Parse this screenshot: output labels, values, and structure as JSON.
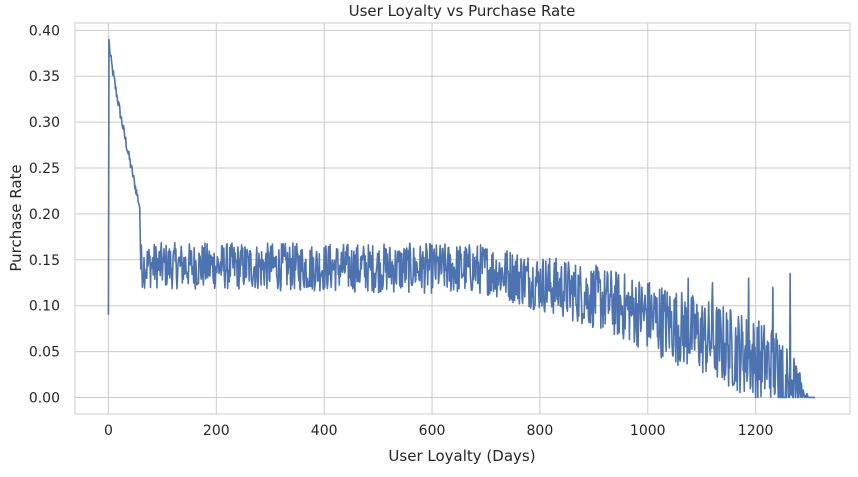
{
  "chart_data": {
    "type": "line",
    "title": "User Loyalty vs Purchase Rate",
    "xlabel": "User Loyalty (Days)",
    "ylabel": "Purchase Rate",
    "xlim": [
      -62,
      1375
    ],
    "ylim": [
      -0.018,
      0.408
    ],
    "xticks": [
      0,
      200,
      400,
      600,
      800,
      1000,
      1200
    ],
    "yticks": [
      0.0,
      0.05,
      0.1,
      0.15,
      0.2,
      0.25,
      0.3,
      0.35,
      0.4
    ],
    "ytick_labels": [
      "0.00",
      "0.05",
      "0.10",
      "0.15",
      "0.20",
      "0.25",
      "0.30",
      "0.35",
      "0.40"
    ],
    "grid": true,
    "colors": {
      "line": "#4c72b0",
      "grid": "#cccccc",
      "text": "#262626"
    },
    "series": [
      {
        "color": "#4c72b0",
        "generator": {
          "start_point": [
            0,
            0.09
          ],
          "peak": [
            1,
            0.39
          ],
          "decay": {
            "from": 1,
            "to": 58,
            "start": 0.385,
            "end": 0.208,
            "noise": 0.006
          },
          "drop_to": [
            60,
            0.14
          ],
          "noisy_trend": [
            {
              "x": 60,
              "mean": 0.144,
              "amp": 0.025
            },
            {
              "x": 700,
              "mean": 0.14,
              "amp": 0.028
            },
            {
              "x": 900,
              "mean": 0.11,
              "amp": 0.035
            },
            {
              "x": 1000,
              "mean": 0.09,
              "amp": 0.04
            },
            {
              "x": 1150,
              "mean": 0.055,
              "amp": 0.045
            },
            {
              "x": 1250,
              "mean": 0.03,
              "amp": 0.045
            },
            {
              "x": 1300,
              "mean": 0.0,
              "amp": 0.0
            }
          ],
          "end_x": 1310,
          "spikes": [
            [
              1264,
              0.135
            ],
            [
              1306,
              0.143
            ],
            [
              1232,
              0.12
            ],
            [
              1187,
              0.13
            ],
            [
              1120,
              0.125
            ],
            [
              1075,
              0.13
            ],
            [
              800,
              0.13
            ],
            [
              770,
              0.145
            ]
          ],
          "zero_tail": [
            [
              1255,
              0.0
            ],
            [
              1262,
              0.0
            ],
            [
              1284,
              0.0
            ],
            [
              1292,
              0.0
            ],
            [
              1298,
              0.0
            ],
            [
              1310,
              0.0
            ]
          ]
        }
      }
    ]
  }
}
